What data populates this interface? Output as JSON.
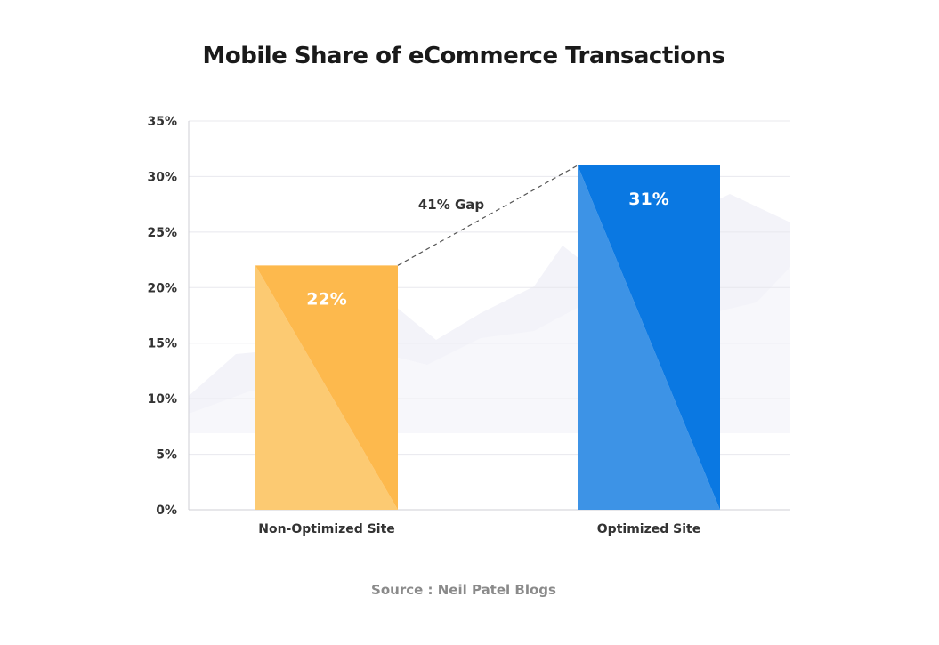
{
  "chart_data": {
    "type": "bar",
    "title": "Mobile Share of eCommerce Transactions",
    "categories": [
      "Non-Optimized Site",
      "Optimized Site"
    ],
    "values": [
      22,
      31
    ],
    "data_labels": [
      "22%",
      "31%"
    ],
    "yticks": [
      "0%",
      "5%",
      "10%",
      "15%",
      "20%",
      "25%",
      "30%",
      "35%"
    ],
    "ylim": [
      0,
      35
    ],
    "xlabel": "",
    "ylabel": "",
    "grid": true,
    "annotation": "41% Gap",
    "source": "Source : Neil Patel Blogs",
    "colors": {
      "bar_1_light": "#fcca72",
      "bar_1_dark": "#fdb94d",
      "bar_2_light": "#3d93e6",
      "bar_2_dark": "#0a78e2",
      "grid": "#e8e8ee",
      "axis": "#cfcfd6",
      "background_shape": "#f3f3f9"
    }
  }
}
